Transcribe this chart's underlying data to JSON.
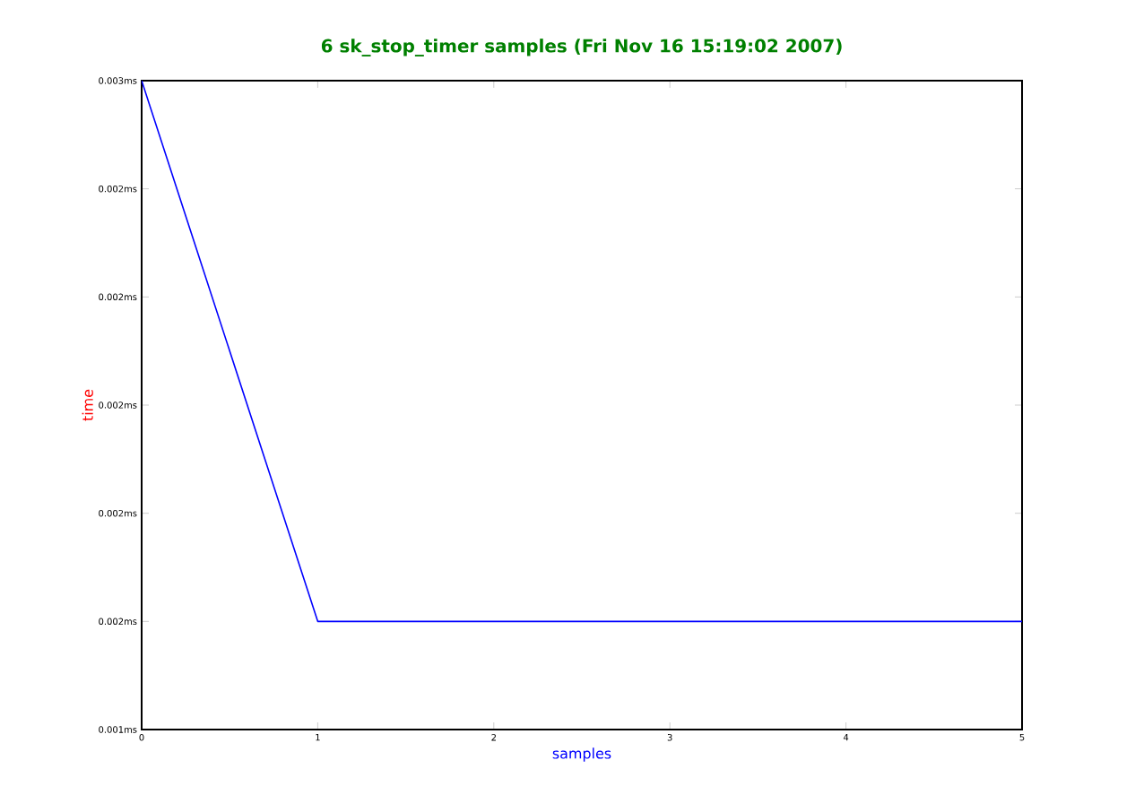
{
  "chart_data": {
    "type": "line",
    "title": "6 sk_stop_timer samples (Fri Nov 16 15:19:02 2007)",
    "xlabel": "samples",
    "ylabel": "time",
    "x": [
      0,
      1,
      2,
      3,
      4,
      5
    ],
    "series": [
      {
        "color": "#0000ff",
        "values": [
          0.0026,
          0.0016,
          0.0016,
          0.0016,
          0.0016,
          0.0016
        ]
      }
    ],
    "xlim": [
      0,
      5
    ],
    "xticks": [
      0,
      1,
      2,
      3,
      4,
      5
    ],
    "ylim": [
      0.0014,
      0.0026
    ],
    "yticks": [
      {
        "value": 0.0014,
        "label": "0.001ms"
      },
      {
        "value": 0.0016,
        "label": "0.002ms"
      },
      {
        "value": 0.0018,
        "label": "0.002ms"
      },
      {
        "value": 0.002,
        "label": "0.002ms"
      },
      {
        "value": 0.0022,
        "label": "0.002ms"
      },
      {
        "value": 0.0024,
        "label": "0.002ms"
      },
      {
        "value": 0.0026,
        "label": "0.003ms"
      }
    ]
  }
}
